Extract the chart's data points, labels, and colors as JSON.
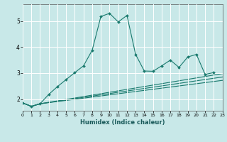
{
  "xlabel": "Humidex (Indice chaleur)",
  "bg_color": "#c8e8e8",
  "line_color": "#1a7a6e",
  "grid_color": "#ffffff",
  "xlim": [
    0,
    23
  ],
  "ylim": [
    1.55,
    5.65
  ],
  "xticks": [
    0,
    1,
    2,
    3,
    4,
    5,
    6,
    7,
    8,
    9,
    10,
    11,
    12,
    13,
    14,
    15,
    16,
    17,
    18,
    19,
    20,
    21,
    22,
    23
  ],
  "yticks": [
    2,
    3,
    4,
    5
  ],
  "main_x": [
    0,
    1,
    2,
    3,
    4,
    5,
    6,
    7,
    8,
    9,
    10,
    11,
    12,
    13,
    14,
    15,
    16,
    17,
    18,
    19,
    20,
    21,
    22
  ],
  "main_y": [
    1.85,
    1.72,
    1.82,
    2.18,
    2.48,
    2.75,
    3.02,
    3.28,
    3.88,
    5.18,
    5.3,
    4.97,
    5.22,
    3.72,
    3.08,
    3.07,
    3.28,
    3.5,
    3.22,
    3.62,
    3.72,
    2.95,
    3.02
  ],
  "line2_x": [
    0,
    1,
    2,
    23
  ],
  "line2_y": [
    1.85,
    1.72,
    1.82,
    2.98
  ],
  "line3_x": [
    0,
    1,
    2,
    23
  ],
  "line3_y": [
    1.85,
    1.72,
    1.82,
    2.85
  ],
  "line4_x": [
    0,
    1,
    2,
    23
  ],
  "line4_y": [
    1.85,
    1.72,
    1.82,
    2.72
  ]
}
